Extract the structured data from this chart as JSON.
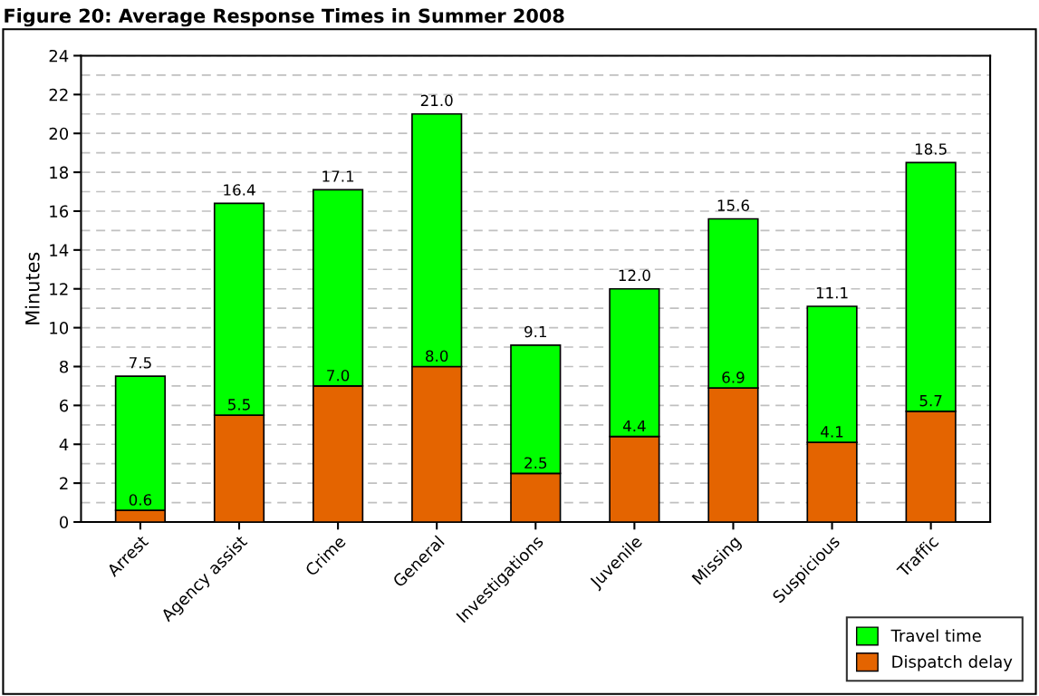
{
  "chart_data": {
    "type": "bar",
    "title": "Figure 20: Average Response Times in Summer 2008",
    "ylabel": "Minutes",
    "categories": [
      "Arrest",
      "Agency assist",
      "Crime",
      "General",
      "Investigations",
      "Juvenile",
      "Missing",
      "Suspicious",
      "Traffic"
    ],
    "stacked": true,
    "series": [
      {
        "name": "Dispatch delay",
        "color": "#e46400",
        "values": [
          0.6,
          5.5,
          7.0,
          8.0,
          2.5,
          4.4,
          6.9,
          4.1,
          5.7
        ],
        "value_labels": [
          "0.6",
          "5.5",
          "7.0",
          "8.0",
          "2.5",
          "4.4",
          "6.9",
          "4.1",
          "5.7"
        ]
      },
      {
        "name": "Travel time",
        "color": "#00ff00",
        "values": [
          6.9,
          10.9,
          10.1,
          13.0,
          6.6,
          7.6,
          8.7,
          7.0,
          12.8
        ]
      }
    ],
    "totals": [
      "7.5",
      "16.4",
      "17.1",
      "21.0",
      "9.1",
      "12.0",
      "15.6",
      "11.1",
      "18.5"
    ],
    "ylim": [
      0,
      24
    ],
    "yticks": [
      0,
      {
        "value": 1,
        "label": null
      },
      2,
      {
        "value": 3,
        "label": null
      },
      4,
      {
        "value": 5,
        "label": null
      },
      6,
      {
        "value": 7,
        "label": null
      },
      8,
      {
        "value": 9,
        "label": null
      },
      10,
      {
        "value": 11,
        "label": null
      },
      12,
      {
        "value": 13,
        "label": null
      },
      14,
      {
        "value": 15,
        "label": null
      },
      16,
      {
        "value": 17,
        "label": null
      },
      18,
      {
        "value": 19,
        "label": null
      },
      20,
      {
        "value": 21,
        "label": null
      },
      22,
      {
        "value": 23,
        "label": null
      },
      24
    ],
    "grid": "y",
    "legend": "bottom right"
  }
}
